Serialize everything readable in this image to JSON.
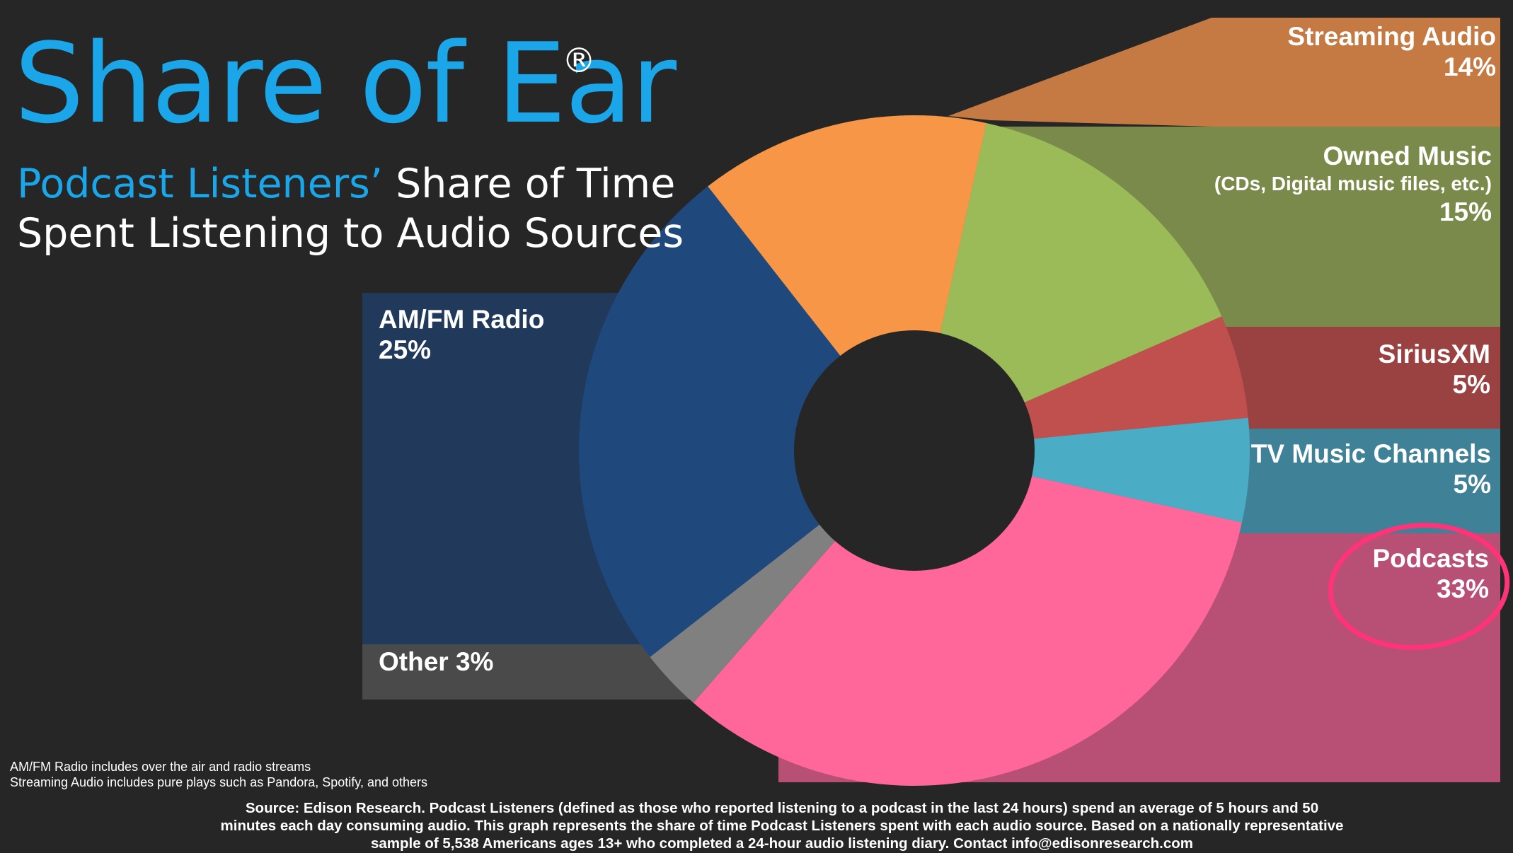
{
  "header": {
    "title": "Share of Ear",
    "registered_mark": "®",
    "subtitle_highlight": "Podcast Listeners’",
    "subtitle_rest_1": " Share of Time",
    "subtitle_line_2": "Spent Listening to Audio Sources"
  },
  "chart_data": {
    "type": "pie",
    "variant": "donut",
    "title": "Share of Ear®",
    "subtitle": "Podcast Listeners’ Share of Time Spent Listening to Audio Sources",
    "unit": "%",
    "slices": [
      {
        "label": "Streaming Audio",
        "value": 14,
        "display": "14%",
        "color": "#f79646",
        "panel_color": "#c47a42"
      },
      {
        "label": "Owned Music",
        "note": "(CDs, Digital music files, etc.)",
        "value": 15,
        "display": "15%",
        "color": "#9bbb59",
        "panel_color": "#7a8a4a"
      },
      {
        "label": "SiriusXM",
        "value": 5,
        "display": "5%",
        "color": "#c0504d",
        "panel_color": "#9a4242"
      },
      {
        "label": "TV Music Channels",
        "value": 5,
        "display": "5%",
        "color": "#4bacc6",
        "panel_color": "#3f8196"
      },
      {
        "label": "Podcasts",
        "value": 33,
        "display": "33%",
        "color": "#ff6699",
        "panel_color": "#b84f74",
        "highlighted": true
      },
      {
        "label": "Other",
        "value": 3,
        "display": "Other 3%",
        "color": "#808080",
        "panel_color": "#4a4a4a"
      },
      {
        "label": "AM/FM Radio",
        "value": 25,
        "display": "25%",
        "color": "#1f497d",
        "panel_color": "#213a5c"
      }
    ],
    "highlight_color": "#ff3377"
  },
  "notes": {
    "line1": "AM/FM Radio includes over the air and radio streams",
    "line2": "Streaming Audio includes pure plays such as Pandora, Spotify, and others"
  },
  "source": {
    "line1": "Source: Edison Research.  Podcast Listeners (defined as those who reported listening to a podcast in the last 24 hours) spend an average of 5 hours and 50",
    "line2": "minutes each day consuming audio. This graph represents the share of time Podcast Listeners spent with each audio source. Based on a nationally representative",
    "line3": "sample of 5,538 Americans ages 13+ who completed a 24-hour audio listening diary. Contact info@edisonresearch.com"
  }
}
